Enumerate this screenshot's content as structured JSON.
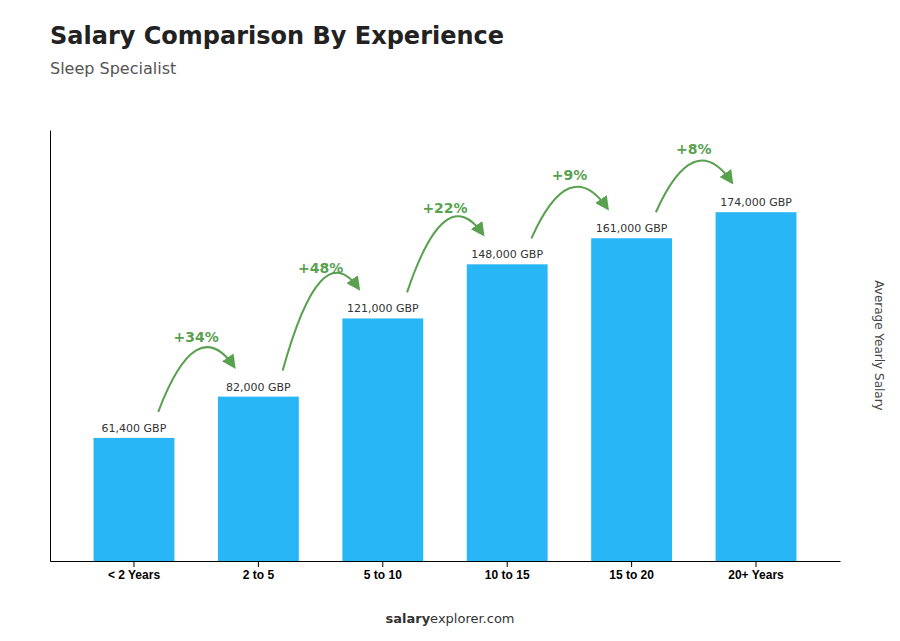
{
  "chart_data": {
    "type": "bar",
    "title": "Salary Comparison By Experience",
    "subtitle": "Sleep Specialist",
    "categories": [
      "< 2 Years",
      "2 to 5",
      "5 to 10",
      "10 to 15",
      "15 to 20",
      "20+ Years"
    ],
    "values": [
      61400,
      82000,
      121000,
      148000,
      161000,
      174000
    ],
    "value_labels": [
      "61,400 GBP",
      "82,000 GBP",
      "121,000 GBP",
      "148,000 GBP",
      "161,000 GBP",
      "174,000 GBP"
    ],
    "color": "#29b6f6",
    "ylabel": "Average Yearly Salary",
    "ylim": [
      0,
      215000
    ],
    "tick_labels": "x",
    "annotations": [
      "+34%",
      "+48%",
      "+22%",
      "+9%",
      "+8%"
    ],
    "footer": [
      "salary",
      "explorer.com"
    ]
  }
}
